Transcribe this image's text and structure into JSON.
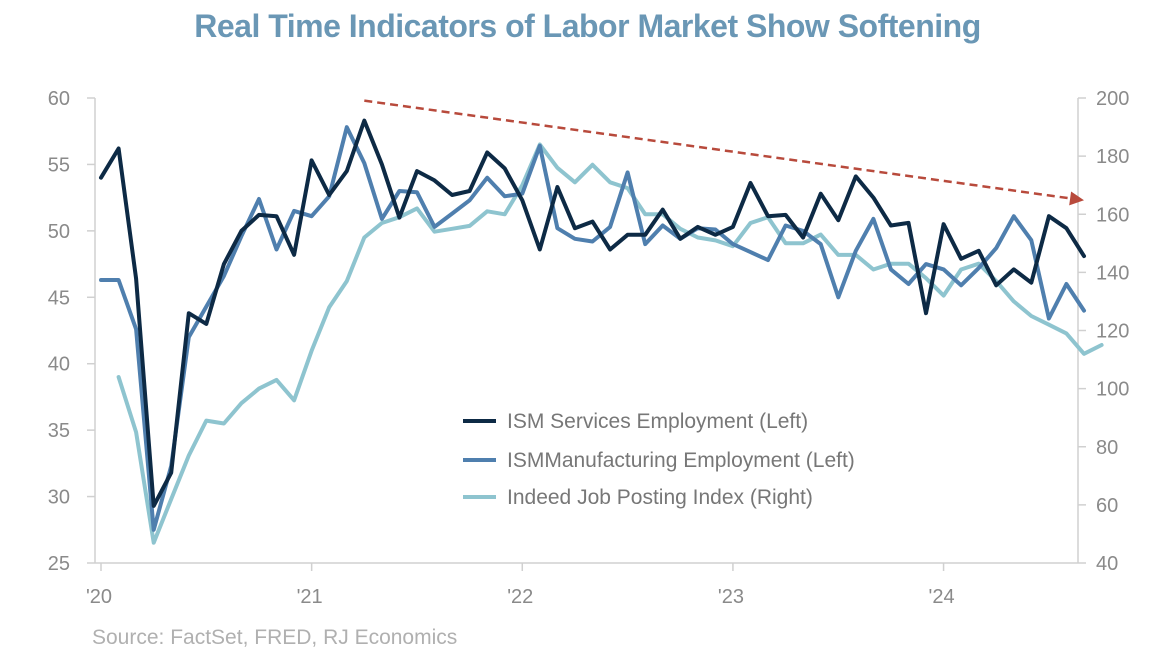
{
  "chart_data": {
    "type": "line",
    "title": "Real Time Indicators of Labor Market Show Softening",
    "source": "Source: FactSet, FRED, RJ Economics",
    "x_ticks": [
      {
        "label": "'20",
        "t": 0
      },
      {
        "label": "'21",
        "t": 12
      },
      {
        "label": "'22",
        "t": 24
      },
      {
        "label": "'23",
        "t": 36
      },
      {
        "label": "'24",
        "t": 48
      }
    ],
    "x_range": [
      0,
      56
    ],
    "y_left": {
      "min": 25,
      "max": 60,
      "ticks": [
        25,
        30,
        35,
        40,
        45,
        50,
        55,
        60
      ]
    },
    "y_right": {
      "min": 40,
      "max": 200,
      "ticks": [
        40,
        60,
        80,
        100,
        120,
        140,
        160,
        180,
        200
      ]
    },
    "series": [
      {
        "name": "ISM Services Employment (Left)",
        "axis": "left",
        "color": "#0d2a45",
        "start_t": 0,
        "values": [
          54.0,
          56.2,
          46.4,
          29.3,
          31.8,
          43.8,
          43.0,
          47.5,
          50.0,
          51.2,
          51.1,
          48.2,
          55.3,
          52.7,
          54.5,
          58.3,
          55.0,
          51.0,
          54.5,
          53.8,
          52.7,
          53.0,
          55.9,
          54.7,
          52.3,
          48.6,
          53.3,
          50.2,
          50.7,
          48.6,
          49.7,
          49.7,
          51.6,
          49.4,
          50.3,
          49.7,
          50.3,
          53.6,
          51.1,
          51.2,
          49.5,
          52.8,
          50.8,
          54.1,
          52.5,
          50.4,
          50.6,
          43.8,
          50.5,
          47.9,
          48.5,
          45.9,
          47.1,
          46.1,
          51.1,
          50.2,
          48.1
        ]
      },
      {
        "name": "ISMManufacturing Employment (Left)",
        "axis": "left",
        "color": "#4f7fae",
        "start_t": 0,
        "values": [
          46.3,
          46.3,
          42.6,
          27.5,
          32.3,
          42.0,
          44.3,
          46.6,
          49.6,
          52.4,
          48.6,
          51.5,
          51.1,
          52.6,
          57.8,
          55.1,
          50.9,
          53.0,
          52.9,
          50.3,
          51.3,
          52.3,
          54.0,
          52.6,
          52.8,
          56.4,
          50.2,
          49.4,
          49.2,
          50.3,
          54.4,
          49.0,
          50.4,
          49.4,
          50.2,
          50.1,
          49.0,
          48.4,
          47.8,
          50.4,
          50.0,
          49.0,
          45.0,
          48.5,
          50.9,
          47.1,
          46.0,
          47.5,
          47.1,
          45.9,
          47.2,
          48.7,
          51.1,
          49.3,
          43.4,
          46.0,
          44.0
        ]
      },
      {
        "name": "Indeed Job Posting Index (Right)",
        "axis": "right",
        "color": "#8ec4cf",
        "start_t": 1,
        "values": [
          104,
          85,
          47,
          62,
          77,
          89,
          88,
          95,
          100,
          103,
          96,
          113,
          128,
          137,
          152,
          157,
          159,
          162,
          154,
          155,
          156,
          161,
          160,
          170,
          184,
          176,
          171,
          177,
          171,
          169,
          160,
          160,
          155,
          152,
          151,
          149,
          157,
          159,
          150,
          150,
          153,
          146,
          146,
          141,
          143,
          143,
          138,
          132,
          141,
          143,
          137,
          130,
          125,
          122,
          119,
          112,
          115
        ]
      }
    ],
    "annotations": [
      {
        "type": "dashed-arrow",
        "color": "#b84a3c",
        "description": "downward trend",
        "from": {
          "t": 15,
          "y_left": 59.8
        },
        "to": {
          "t": 56,
          "y_left": 52.3
        }
      }
    ]
  }
}
